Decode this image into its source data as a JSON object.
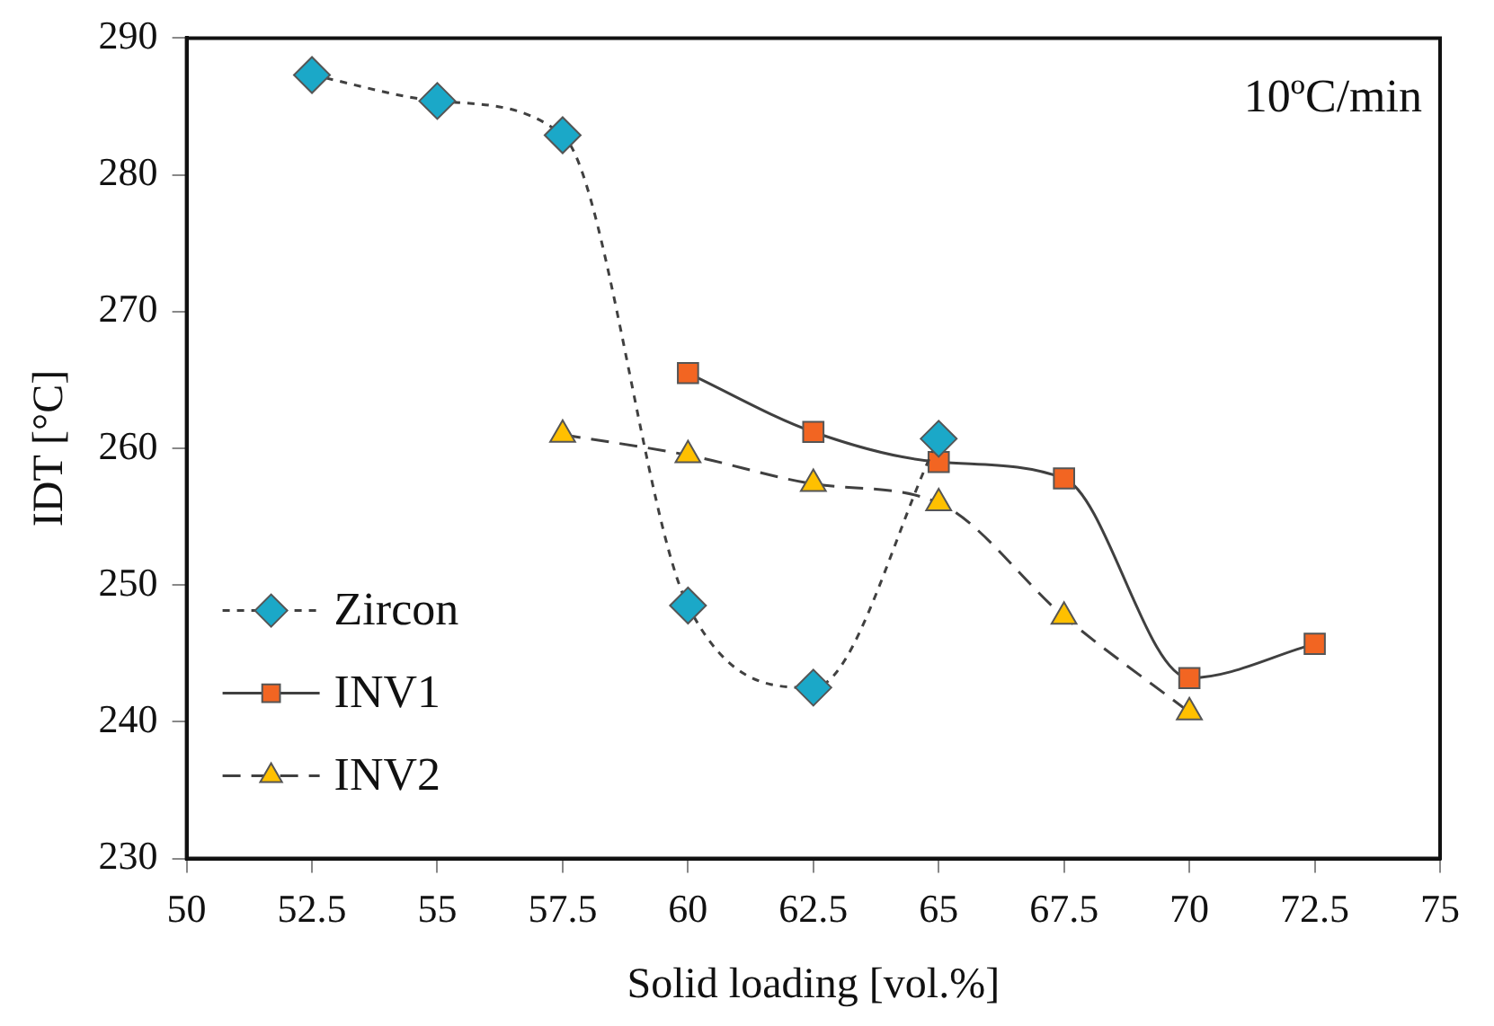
{
  "chart_data": {
    "type": "line",
    "xlabel": "Solid loading [vol.%]",
    "ylabel": "IDT [°C]",
    "annotations": [
      "10ºC/min"
    ],
    "series": [
      {
        "name": "Zircon",
        "color": "#1ba8c8",
        "marker": "diamond",
        "line_style": "dotted",
        "x": [
          52.5,
          55,
          57.5,
          60,
          62.5,
          65
        ],
        "values": [
          287.3,
          285.4,
          282.9,
          248.5,
          242.5,
          260.7
        ]
      },
      {
        "name": "INV1",
        "color": "#f26522",
        "marker": "square",
        "line_style": "solid",
        "x": [
          60,
          62.5,
          65,
          67.5,
          70,
          72.5
        ],
        "values": [
          265.5,
          261.2,
          259.0,
          257.8,
          243.2,
          245.7
        ]
      },
      {
        "name": "INV2",
        "color": "#ffc000",
        "marker": "triangle",
        "line_style": "dashed",
        "x": [
          57.5,
          60,
          62.5,
          65,
          67.5,
          70
        ],
        "values": [
          261.0,
          259.5,
          257.4,
          256.0,
          247.7,
          240.7
        ]
      }
    ],
    "xlim": [
      50,
      75
    ],
    "xticks": [
      50,
      {
        "value": 52.5,
        "label": "52.5"
      },
      55,
      {
        "value": 57.5,
        "label": "57.5"
      },
      60,
      {
        "value": 62.5,
        "label": "62.5"
      },
      65,
      {
        "value": 67.5,
        "label": "67.5"
      },
      70,
      {
        "value": 72.5,
        "label": "72.5"
      },
      75
    ],
    "ylim": [
      230,
      290
    ],
    "yticks": [
      230,
      240,
      250,
      260,
      270,
      280,
      290
    ],
    "grid": false,
    "legend": "bottom left"
  }
}
